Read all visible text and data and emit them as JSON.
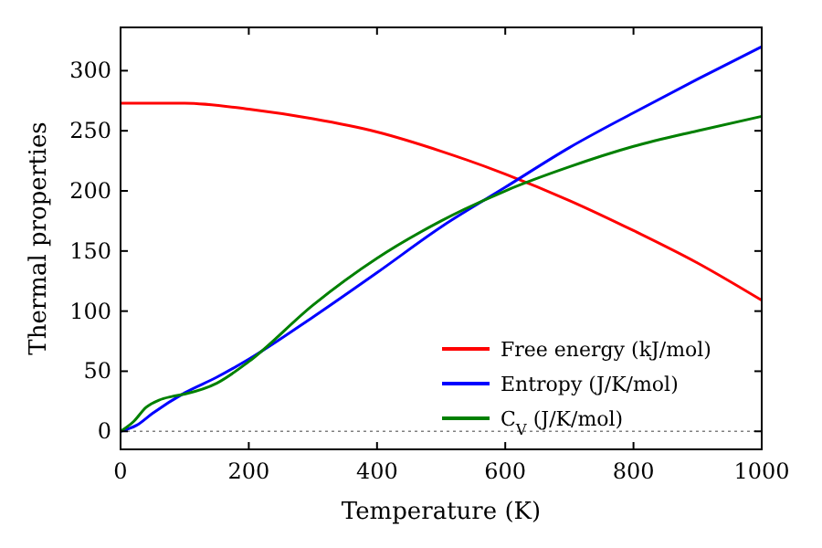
{
  "chart_data": {
    "type": "line",
    "xlabel": "Temperature (K)",
    "ylabel": "Thermal properties",
    "xlim": [
      0,
      1000
    ],
    "xticks": [
      0,
      200,
      400,
      600,
      800,
      1000
    ],
    "ylim": [
      -15,
      336
    ],
    "yticks": [
      0,
      50,
      100,
      150,
      200,
      250,
      300
    ],
    "legend": "bottom right",
    "grid": false,
    "ref_lines": [
      {
        "axis": "y",
        "value": 0,
        "color": "#808080",
        "line_style": "dotted"
      }
    ],
    "series": [
      {
        "name": "Free energy (kJ/mol)",
        "color": "#ff0000",
        "x": [
          0,
          100,
          200,
          300,
          400,
          500,
          600,
          700,
          800,
          900,
          1000
        ],
        "values": [
          273,
          273,
          268,
          260,
          249,
          233,
          214,
          192,
          167,
          140,
          109
        ]
      },
      {
        "name": "Entropy (J/K/mol)",
        "color": "#0000ff",
        "x": [
          0,
          25,
          50,
          100,
          150,
          200,
          300,
          400,
          500,
          600,
          700,
          800,
          900,
          1000
        ],
        "values": [
          0,
          5,
          15,
          32,
          45,
          60,
          95,
          132,
          170,
          203,
          236,
          265,
          293,
          320
        ]
      },
      {
        "name": "C$_{V}$ (J/K/mol)",
        "color": "#008000",
        "x": [
          0,
          20,
          40,
          60,
          80,
          100,
          150,
          200,
          300,
          400,
          500,
          600,
          700,
          800,
          900,
          1000
        ],
        "values": [
          0,
          8,
          20,
          26,
          29,
          31,
          40,
          58,
          105,
          144,
          175,
          200,
          220,
          237,
          250,
          262
        ]
      }
    ]
  }
}
